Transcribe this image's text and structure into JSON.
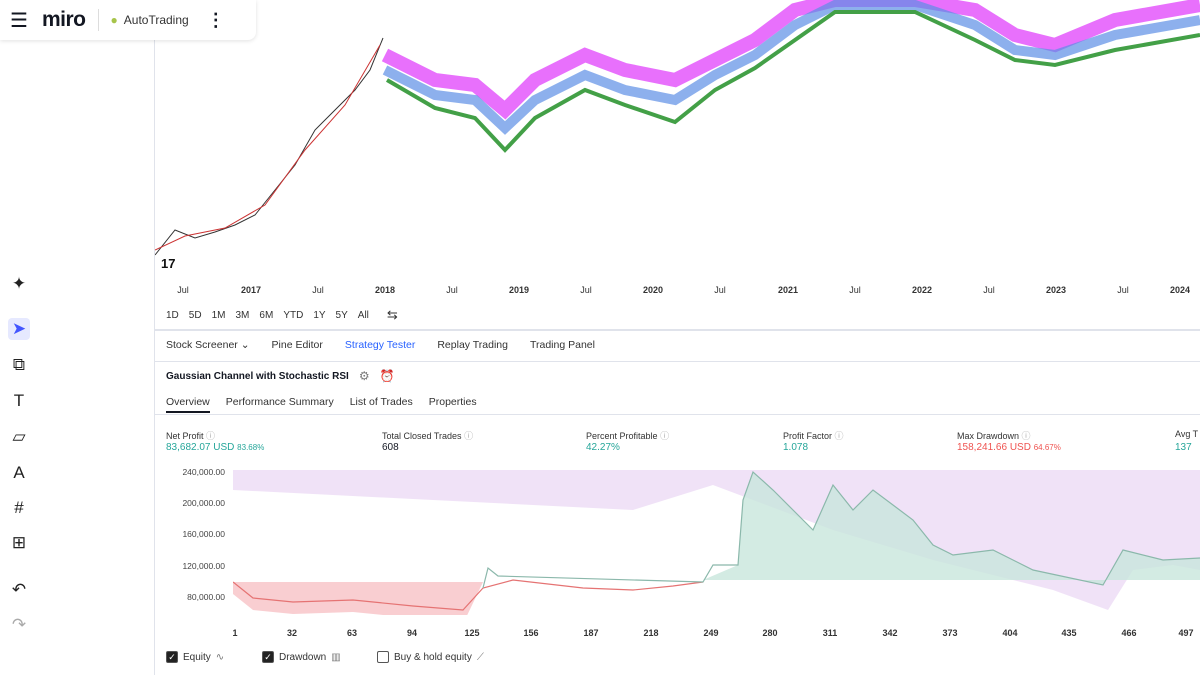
{
  "miro": {
    "menu_icon": "hamburger-icon",
    "logo": "miro",
    "board_name": "AutoTrading",
    "more_icon": "kebab-icon"
  },
  "toolbar": [
    "sparkle-icon",
    "cursor-icon",
    "shapes-icon",
    "text-icon",
    "sticky-note-icon",
    "pen-icon",
    "frame-icon",
    "add-icon",
    "undo-icon",
    "redo-icon"
  ],
  "price_chart": {
    "time_axis": [
      "Jul",
      "2017",
      "Jul",
      "2018",
      "Jul",
      "2019",
      "Jul",
      "2020",
      "Jul",
      "2021",
      "Jul",
      "2022",
      "Jul",
      "2023",
      "Jul",
      "2024"
    ],
    "logo": "TV"
  },
  "ranges": [
    "1D",
    "5D",
    "1M",
    "3M",
    "6M",
    "YTD",
    "1Y",
    "5Y",
    "All"
  ],
  "panel_tabs": [
    "Stock Screener",
    "Pine Editor",
    "Strategy Tester",
    "Replay Trading",
    "Trading Panel"
  ],
  "active_panel_tab": "Strategy Tester",
  "strategy_name": "Gaussian Channel with Stochastic RSI",
  "sub_tabs": [
    "Overview",
    "Performance Summary",
    "List of Trades",
    "Properties"
  ],
  "metrics": [
    {
      "label": "Net Profit",
      "value": "83,682.07 USD",
      "pct": "83.68%"
    },
    {
      "label": "Total Closed Trades",
      "value": "608"
    },
    {
      "label": "Percent Profitable",
      "value": "42.27%"
    },
    {
      "label": "Profit Factor",
      "value": "1.078"
    },
    {
      "label": "Max Drawdown",
      "value": "158,241.66 USD",
      "pct": "64.67%"
    },
    {
      "label": "Avg T",
      "value": "137"
    }
  ],
  "equity_chart": {
    "y_labels": [
      "240,000.00",
      "200,000.00",
      "160,000.00",
      "120,000.00",
      "80,000.00"
    ],
    "x_labels": [
      "1",
      "32",
      "63",
      "94",
      "125",
      "156",
      "187",
      "218",
      "249",
      "280",
      "311",
      "342",
      "373",
      "404",
      "435",
      "466",
      "497"
    ]
  },
  "legend": [
    {
      "label": "Equity",
      "checked": true
    },
    {
      "label": "Drawdown",
      "checked": true
    },
    {
      "label": "Buy & hold equity",
      "checked": false
    }
  ],
  "colors": {
    "profit": "#26a69a",
    "loss": "#ef5350",
    "accent": "#2962ff",
    "drawdown": "#e1bee7"
  }
}
